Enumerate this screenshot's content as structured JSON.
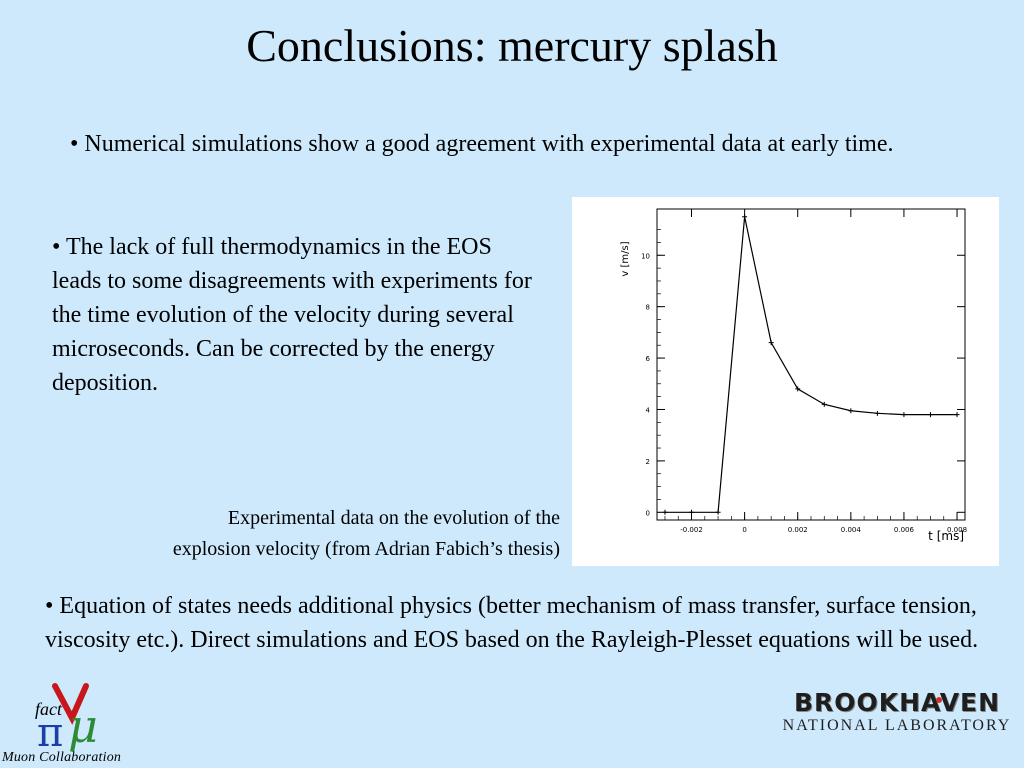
{
  "slide": {
    "title": "Conclusions: mercury splash",
    "bullet1": "• Numerical simulations show a good agreement with experimental data at early time.",
    "bullet2": "• The lack of full thermodynamics in the EOS leads to some disagreements with experiments for the time evolution of the velocity during several microseconds. Can be corrected by the energy deposition.",
    "caption_line1": "Experimental data on the evolution of the",
    "caption_line2": "explosion velocity (from Adrian Fabich’s thesis)",
    "bullet3": "• Equation of states needs  additional physics (better mechanism of mass transfer, surface tension, viscosity etc.). Direct simulations and EOS based on the Rayleigh-Plesset equations will be used."
  },
  "logos": {
    "left_small": "fact",
    "left_caption": "Muon Collaboration",
    "right_line1": "BROOKHAVEN",
    "right_line2": "NATIONAL LABORATORY"
  },
  "chart_data": {
    "type": "line",
    "ylabel": "v [m/s]",
    "xlabel": "t [ms]",
    "xlim": [
      -0.0033,
      0.0083
    ],
    "ylim": [
      -0.3,
      11.8
    ],
    "xticks": [
      -0.002,
      0,
      0.002,
      0.004,
      0.006,
      0.008
    ],
    "xtick_labels": [
      "-0.002",
      "0",
      "0.002",
      "0.004",
      "0.006",
      "0.008"
    ],
    "yticks": [
      0,
      2,
      4,
      6,
      8,
      10
    ],
    "ytick_labels": [
      "0",
      "2",
      "4",
      "6",
      "8",
      "10"
    ],
    "grid": false,
    "series": [
      {
        "x": [
          -0.003,
          -0.002,
          -0.001,
          0.0,
          0.001,
          0.002,
          0.003,
          0.004,
          0.005,
          0.006,
          0.007,
          0.008
        ],
        "y": [
          0.0,
          0.0,
          0.0,
          11.5,
          6.6,
          4.8,
          4.2,
          3.95,
          3.85,
          3.8,
          3.8,
          3.8
        ]
      }
    ]
  }
}
